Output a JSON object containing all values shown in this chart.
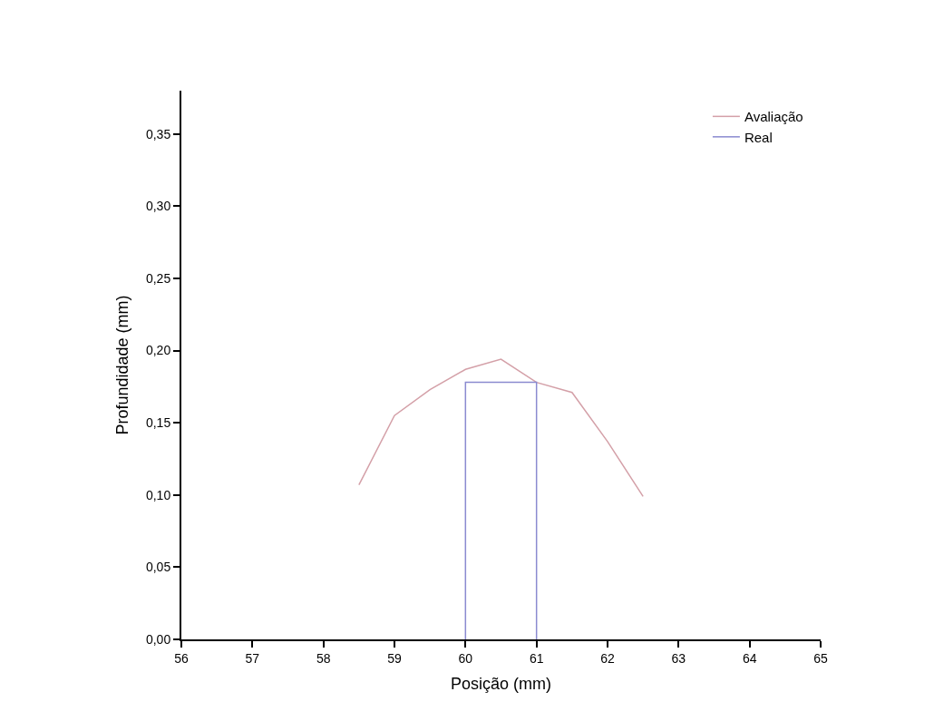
{
  "chart_data": {
    "type": "line",
    "xlabel": "Posição (mm)",
    "ylabel": "Profundidade (mm)",
    "xlim": [
      56,
      65
    ],
    "xticks": [
      56,
      57,
      58,
      59,
      60,
      61,
      62,
      63,
      64,
      65
    ],
    "ylim": [
      0,
      0.38
    ],
    "yticks": [
      {
        "value": 0,
        "label": "0,00"
      },
      {
        "value": 0.05,
        "label": "0,05"
      },
      {
        "value": 0.1,
        "label": "0,10"
      },
      {
        "value": 0.15,
        "label": "0,15"
      },
      {
        "value": 0.2,
        "label": "0,20"
      },
      {
        "value": 0.25,
        "label": "0,25"
      },
      {
        "value": 0.3,
        "label": "0,30"
      },
      {
        "value": 0.35,
        "label": "0,35"
      }
    ],
    "legend": "top right",
    "marker": "none",
    "series": [
      {
        "name": "Avaliação",
        "color": "#d4a0a8",
        "x": [
          58.5,
          59,
          59.5,
          60,
          60.5,
          61,
          61.5,
          62,
          62.5
        ],
        "values": [
          0.107,
          0.155,
          0.173,
          0.187,
          0.194,
          0.178,
          0.171,
          0.137,
          0.099
        ]
      },
      {
        "name": "Real",
        "color": "#8a8ad0",
        "x": [
          60,
          60,
          61,
          61
        ],
        "values": [
          0,
          0.178,
          0.178,
          0
        ]
      }
    ]
  }
}
